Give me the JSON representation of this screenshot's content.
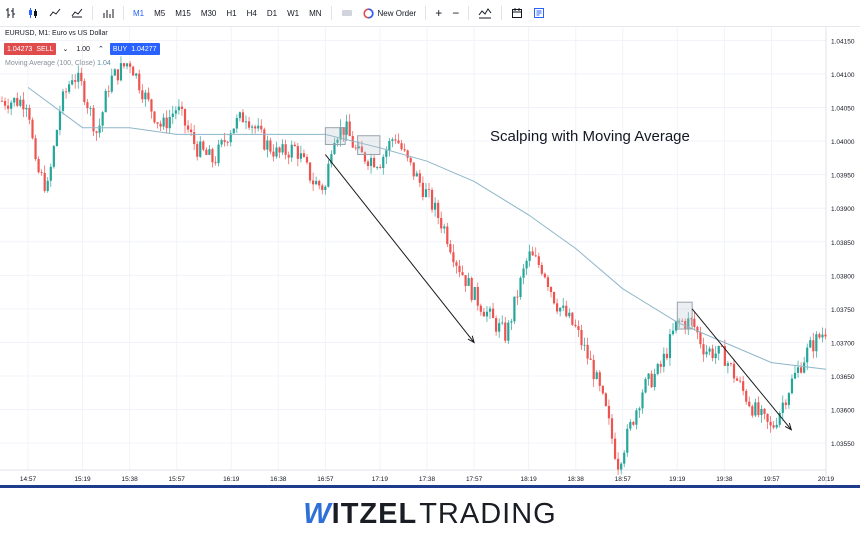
{
  "toolbar": {
    "timeframes": [
      "M1",
      "M5",
      "M15",
      "M30",
      "H1",
      "H4",
      "D1",
      "W1",
      "MN"
    ],
    "active_timeframe": "M1",
    "new_order_label": "New Order",
    "plus_label": "+",
    "minus_label": "−"
  },
  "symbol": {
    "title": "EURUSD, M1: Euro vs US Dollar"
  },
  "trade": {
    "sell_price": "1.04273",
    "sell_label": "SELL",
    "quantity": "1.00",
    "buy_label": "BUY",
    "buy_price": "1.04277"
  },
  "indicator": {
    "label": "Moving Average (100, Close)",
    "value": "1.04"
  },
  "chart": {
    "annotation": "Scalping with Moving Average",
    "y_ticks": [
      "1.04150",
      "1.04100",
      "1.04050",
      "1.04000",
      "1.03950",
      "1.03900",
      "1.03850",
      "1.03800",
      "1.03750",
      "1.03700",
      "1.03650",
      "1.03600",
      "1.03550"
    ],
    "x_ticks": [
      "14:57",
      "15:19",
      "15:38",
      "15:57",
      "16:19",
      "16:38",
      "16:57",
      "17:19",
      "17:38",
      "17:57",
      "18:19",
      "18:38",
      "18:57",
      "19:19",
      "19:38",
      "19:57",
      "20:19"
    ],
    "colors": {
      "up": "#26a69a",
      "down": "#ef5350",
      "ma": "#8fb6c9",
      "arrow": "#1a1a1a",
      "box": "#9aa3ad"
    }
  },
  "chart_data": {
    "type": "candlestick",
    "title": "Scalping with Moving Average",
    "ylim": [
      1.0351,
      1.0417
    ],
    "x_categories": [
      "14:57",
      "15:19",
      "15:38",
      "15:57",
      "16:19",
      "16:38",
      "16:57",
      "17:19",
      "17:38",
      "17:57",
      "18:19",
      "18:38",
      "18:57",
      "19:19",
      "19:38",
      "19:57",
      "20:19"
    ],
    "close_path": [
      {
        "x": "14:57",
        "y": 1.0406
      },
      {
        "x": "15:00",
        "y": 1.0396
      },
      {
        "x": "15:05",
        "y": 1.0393
      },
      {
        "x": "15:10",
        "y": 1.0405
      },
      {
        "x": "15:15",
        "y": 1.041
      },
      {
        "x": "15:19",
        "y": 1.0408
      },
      {
        "x": "15:25",
        "y": 1.0401
      },
      {
        "x": "15:30",
        "y": 1.0409
      },
      {
        "x": "15:38",
        "y": 1.0412
      },
      {
        "x": "15:45",
        "y": 1.0406
      },
      {
        "x": "15:51",
        "y": 1.0402
      },
      {
        "x": "15:57",
        "y": 1.0405
      },
      {
        "x": "16:05",
        "y": 1.0399
      },
      {
        "x": "16:12",
        "y": 1.0397
      },
      {
        "x": "16:19",
        "y": 1.0402
      },
      {
        "x": "16:25",
        "y": 1.0404
      },
      {
        "x": "16:32",
        "y": 1.04
      },
      {
        "x": "16:38",
        "y": 1.0398
      },
      {
        "x": "16:45",
        "y": 1.0399
      },
      {
        "x": "16:52",
        "y": 1.0394
      },
      {
        "x": "16:57",
        "y": 1.0393
      },
      {
        "x": "17:00",
        "y": 1.0401
      },
      {
        "x": "17:05",
        "y": 1.0402
      },
      {
        "x": "17:10",
        "y": 1.0398
      },
      {
        "x": "17:19",
        "y": 1.0397
      },
      {
        "x": "17:25",
        "y": 1.0401
      },
      {
        "x": "17:30",
        "y": 1.0397
      },
      {
        "x": "17:38",
        "y": 1.0392
      },
      {
        "x": "17:45",
        "y": 1.0387
      },
      {
        "x": "17:50",
        "y": 1.0382
      },
      {
        "x": "17:57",
        "y": 1.0377
      },
      {
        "x": "18:05",
        "y": 1.0373
      },
      {
        "x": "18:10",
        "y": 1.0371
      },
      {
        "x": "18:15",
        "y": 1.0378
      },
      {
        "x": "18:19",
        "y": 1.0383
      },
      {
        "x": "18:25",
        "y": 1.0381
      },
      {
        "x": "18:30",
        "y": 1.0376
      },
      {
        "x": "18:38",
        "y": 1.0372
      },
      {
        "x": "18:45",
        "y": 1.0366
      },
      {
        "x": "18:50",
        "y": 1.036
      },
      {
        "x": "18:55",
        "y": 1.0352
      },
      {
        "x": "18:57",
        "y": 1.0354
      },
      {
        "x": "19:05",
        "y": 1.0363
      },
      {
        "x": "19:12",
        "y": 1.0366
      },
      {
        "x": "19:19",
        "y": 1.0373
      },
      {
        "x": "19:25",
        "y": 1.0373
      },
      {
        "x": "19:30",
        "y": 1.0369
      },
      {
        "x": "19:38",
        "y": 1.0368
      },
      {
        "x": "19:45",
        "y": 1.0363
      },
      {
        "x": "19:50",
        "y": 1.036
      },
      {
        "x": "19:57",
        "y": 1.0357
      },
      {
        "x": "20:05",
        "y": 1.0364
      },
      {
        "x": "20:12",
        "y": 1.0369
      },
      {
        "x": "20:19",
        "y": 1.0372
      }
    ],
    "moving_average": {
      "name": "Moving Average (100, Close)",
      "points": [
        {
          "x": "14:57",
          "y": 1.0408
        },
        {
          "x": "15:19",
          "y": 1.0402
        },
        {
          "x": "15:38",
          "y": 1.0402
        },
        {
          "x": "15:57",
          "y": 1.0401
        },
        {
          "x": "16:19",
          "y": 1.0401
        },
        {
          "x": "16:38",
          "y": 1.0401
        },
        {
          "x": "16:57",
          "y": 1.0401
        },
        {
          "x": "17:19",
          "y": 1.0399
        },
        {
          "x": "17:38",
          "y": 1.0397
        },
        {
          "x": "17:57",
          "y": 1.0394
        },
        {
          "x": "18:19",
          "y": 1.0389
        },
        {
          "x": "18:38",
          "y": 1.0384
        },
        {
          "x": "18:57",
          "y": 1.0378
        },
        {
          "x": "19:19",
          "y": 1.0373
        },
        {
          "x": "19:38",
          "y": 1.037
        },
        {
          "x": "19:57",
          "y": 1.0367
        },
        {
          "x": "20:19",
          "y": 1.0366
        }
      ]
    },
    "highlight_boxes": [
      {
        "x_from": "16:57",
        "x_to": "17:05",
        "y_from": 1.03995,
        "y_to": 1.0402
      },
      {
        "x_from": "17:10",
        "x_to": "17:19",
        "y_from": 1.0398,
        "y_to": 1.04008
      },
      {
        "x_from": "19:19",
        "x_to": "19:25",
        "y_from": 1.0372,
        "y_to": 1.0376
      }
    ],
    "arrows": [
      {
        "from": {
          "x": "16:57",
          "y": 1.0398
        },
        "to": {
          "x": "17:57",
          "y": 1.037
        }
      },
      {
        "from": {
          "x": "19:25",
          "y": 1.0375
        },
        "to": {
          "x": "20:05",
          "y": 1.0357
        }
      }
    ]
  },
  "footer": {
    "logo_w": "W",
    "logo_itzel": "ITZEL",
    "logo_trading": "TRADING"
  }
}
